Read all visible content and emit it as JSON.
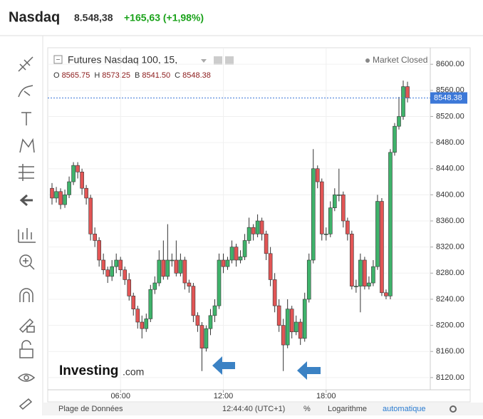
{
  "header": {
    "title": "Nasdaq",
    "price": "8.548,38",
    "change": "+165,63 (+1,98%)"
  },
  "toolbar": {
    "status": "Market Closed",
    "ohlc": [
      {
        "key": "O",
        "value": "8565.75"
      },
      {
        "key": "H",
        "value": "8573.25"
      },
      {
        "key": "B",
        "value": "8541.50"
      },
      {
        "key": "C",
        "value": "8548.38"
      }
    ],
    "bottom": [
      "Plage de Données",
      "12:44:40 (UTC+1)",
      "%",
      "Logarithme",
      "automatique"
    ],
    "logo": "Investing",
    "logo_suffix": ".com"
  },
  "chart_data": {
    "type": "candlestick",
    "title": "Futures Nasdaq 100, 15,",
    "x": [
      2,
      2.25,
      2.5,
      2.75,
      3,
      3.25,
      3.5,
      3.75,
      4,
      4.25,
      4.5,
      4.75,
      5,
      5.25,
      5.5,
      5.75,
      6,
      6.25,
      6.5,
      6.75,
      7,
      7.25,
      7.5,
      7.75,
      8,
      8.25,
      8.5,
      8.75,
      9,
      9.25,
      9.5,
      9.75,
      10,
      10.25,
      10.5,
      10.75,
      11,
      11.25,
      11.5,
      11.75,
      12,
      12.25,
      12.5,
      12.75,
      13,
      13.25,
      13.5,
      13.75,
      14,
      14.25,
      14.5,
      14.75,
      15,
      15.25,
      15.5,
      15.75,
      16,
      16.25,
      16.5,
      16.75,
      17,
      17.25,
      17.5,
      17.75,
      18,
      18.25,
      18.5,
      18.75,
      19,
      19.25,
      19.5,
      19.75,
      20,
      20.25,
      20.5,
      20.75,
      21,
      21.25,
      21.5,
      21.75,
      22,
      22.25,
      22.5,
      22.75
    ],
    "open": [
      8410,
      8395,
      8405,
      8385,
      8400,
      8420,
      8445,
      8435,
      8410,
      8395,
      8340,
      8330,
      8300,
      8285,
      8275,
      8290,
      8300,
      8285,
      8270,
      8245,
      8225,
      8205,
      8195,
      8210,
      8255,
      8265,
      8300,
      8275,
      8300,
      8300,
      8280,
      8300,
      8265,
      8260,
      8215,
      8200,
      8165,
      8195,
      8215,
      8230,
      8300,
      8290,
      8300,
      8320,
      8300,
      8305,
      8330,
      8350,
      8340,
      8360,
      8340,
      8310,
      8270,
      8230,
      8200,
      8170,
      8225,
      8190,
      8205,
      8180,
      8240,
      8300,
      8440,
      8420,
      8340,
      8340,
      8380,
      8400,
      8400,
      8360,
      8340,
      8260,
      8260,
      8300,
      8260,
      8265,
      8290,
      8390,
      8250,
      8245,
      8465,
      8505,
      8520,
      8565.75
    ],
    "high": [
      8418,
      8412,
      8410,
      8408,
      8428,
      8450,
      8450,
      8440,
      8415,
      8400,
      8350,
      8335,
      8310,
      8290,
      8300,
      8310,
      8305,
      8290,
      8280,
      8250,
      8230,
      8215,
      8218,
      8262,
      8275,
      8315,
      8330,
      8355,
      8310,
      8330,
      8310,
      8305,
      8270,
      8265,
      8220,
      8205,
      8200,
      8225,
      8240,
      8310,
      8310,
      8305,
      8330,
      8325,
      8315,
      8340,
      8365,
      8355,
      8370,
      8365,
      8345,
      8320,
      8280,
      8240,
      8210,
      8240,
      8230,
      8215,
      8210,
      8250,
      8310,
      8470,
      8445,
      8425,
      8350,
      8390,
      8410,
      8440,
      8405,
      8365,
      8345,
      8270,
      8310,
      8305,
      8275,
      8300,
      8400,
      8395,
      8255,
      8470,
      8510,
      8550,
      8575,
      8573.25
    ],
    "low": [
      8385,
      8388,
      8378,
      8380,
      8395,
      8415,
      8425,
      8400,
      8385,
      8330,
      8320,
      8290,
      8278,
      8265,
      8268,
      8280,
      8275,
      8262,
      8238,
      8215,
      8195,
      8180,
      8190,
      8205,
      8248,
      8260,
      8270,
      8270,
      8290,
      8275,
      8275,
      8255,
      8250,
      8205,
      8190,
      8130,
      8160,
      8185,
      8205,
      8225,
      8280,
      8285,
      8295,
      8290,
      8295,
      8300,
      8325,
      8330,
      8335,
      8330,
      8300,
      8260,
      8220,
      8190,
      8130,
      8165,
      8180,
      8185,
      8170,
      8175,
      8235,
      8295,
      8410,
      8330,
      8330,
      8335,
      8375,
      8390,
      8350,
      8330,
      8255,
      8250,
      8220,
      8255,
      8255,
      8260,
      8285,
      8245,
      8240,
      8240,
      8460,
      8500,
      8515,
      8541.5
    ],
    "close": [
      8395,
      8405,
      8385,
      8400,
      8420,
      8445,
      8435,
      8410,
      8395,
      8340,
      8330,
      8300,
      8285,
      8275,
      8290,
      8300,
      8285,
      8270,
      8245,
      8225,
      8205,
      8195,
      8210,
      8255,
      8265,
      8300,
      8275,
      8300,
      8300,
      8280,
      8300,
      8265,
      8260,
      8215,
      8200,
      8165,
      8195,
      8215,
      8230,
      8300,
      8290,
      8300,
      8320,
      8300,
      8305,
      8330,
      8350,
      8340,
      8360,
      8340,
      8310,
      8270,
      8230,
      8200,
      8170,
      8225,
      8190,
      8205,
      8180,
      8240,
      8300,
      8440,
      8420,
      8340,
      8340,
      8380,
      8400,
      8400,
      8360,
      8340,
      8260,
      8260,
      8300,
      8260,
      8265,
      8290,
      8390,
      8250,
      8245,
      8465,
      8505,
      8520,
      8565.75,
      8548.38
    ],
    "up_color": "#3fb36b",
    "down_color": "#e25555",
    "last_color": "#3c78d8",
    "xlim": [
      1.75,
      24.08
    ],
    "xticks": [
      {
        "value": 6,
        "label": "06:00"
      },
      {
        "value": 12,
        "label": "12:00"
      },
      {
        "value": 18,
        "label": "18:00"
      }
    ],
    "ylim": [
      8101.3,
      8625.3
    ],
    "yticks": [
      {
        "value": 8120,
        "label": "8120.00"
      },
      {
        "value": 8160,
        "label": "8160.00"
      },
      {
        "value": 8200,
        "label": "8200.00"
      },
      {
        "value": 8240,
        "label": "8240.00"
      },
      {
        "value": 8280,
        "label": "8280.00"
      },
      {
        "value": 8320,
        "label": "8320.00"
      },
      {
        "value": 8360,
        "label": "8360.00"
      },
      {
        "value": 8400,
        "label": "8400.00"
      },
      {
        "value": 8440,
        "label": "8440.00"
      },
      {
        "value": 8480,
        "label": "8480.00"
      },
      {
        "value": 8520,
        "label": "8520.00"
      },
      {
        "value": 8560,
        "label": "8560.00"
      },
      {
        "value": 8600,
        "label": "8600.00"
      }
    ],
    "grid": true
  }
}
